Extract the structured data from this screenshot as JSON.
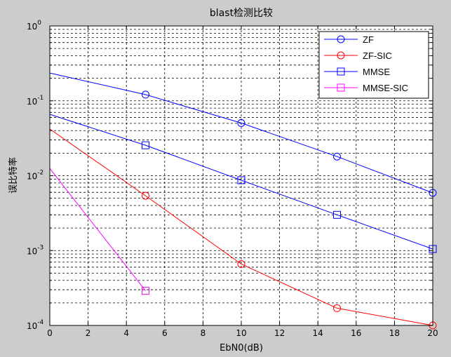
{
  "chart_data": {
    "type": "line",
    "title": "blast检测比较",
    "xlabel": "EbN0(dB)",
    "ylabel": "误比特率",
    "xlim": [
      0,
      20
    ],
    "ylim": [
      0.0001,
      1
    ],
    "yscale": "log",
    "grid": true,
    "grid_style": "dashed",
    "legend_position": "top-right",
    "x_ticks": [
      0,
      2,
      4,
      6,
      8,
      10,
      12,
      14,
      16,
      18,
      20
    ],
    "x_tick_labels": [
      "0",
      "2",
      "4",
      "6",
      "8",
      "10",
      "12",
      "14",
      "16",
      "18",
      "20"
    ],
    "y_ticks": [
      {
        "value": 0.0001,
        "base": "10",
        "exp": "-4"
      },
      {
        "value": 0.001,
        "base": "10",
        "exp": "-3"
      },
      {
        "value": 0.01,
        "base": "10",
        "exp": "-2"
      },
      {
        "value": 0.1,
        "base": "10",
        "exp": "-1"
      },
      {
        "value": 1,
        "base": "10",
        "exp": "0"
      }
    ],
    "series": [
      {
        "name": "ZF",
        "color": "#0000ff",
        "marker": "circle",
        "x": [
          0,
          5,
          10,
          15,
          20
        ],
        "y": [
          0.235,
          0.121,
          0.0505,
          0.018,
          0.0059
        ]
      },
      {
        "name": "ZF-SIC",
        "color": "#ff0000",
        "marker": "circle",
        "x": [
          0,
          5,
          10,
          15,
          20
        ],
        "y": [
          0.042,
          0.0054,
          0.00066,
          0.00017,
          0.0001
        ]
      },
      {
        "name": "MMSE",
        "color": "#0000ff",
        "marker": "square",
        "x": [
          0,
          5,
          10,
          15,
          20
        ],
        "y": [
          0.066,
          0.0255,
          0.0087,
          0.003,
          0.00105
        ]
      },
      {
        "name": "MMSE-SIC",
        "color": "#ff00ff",
        "marker": "square",
        "x": [
          0,
          5
        ],
        "y": [
          0.0125,
          0.00029
        ]
      }
    ]
  }
}
